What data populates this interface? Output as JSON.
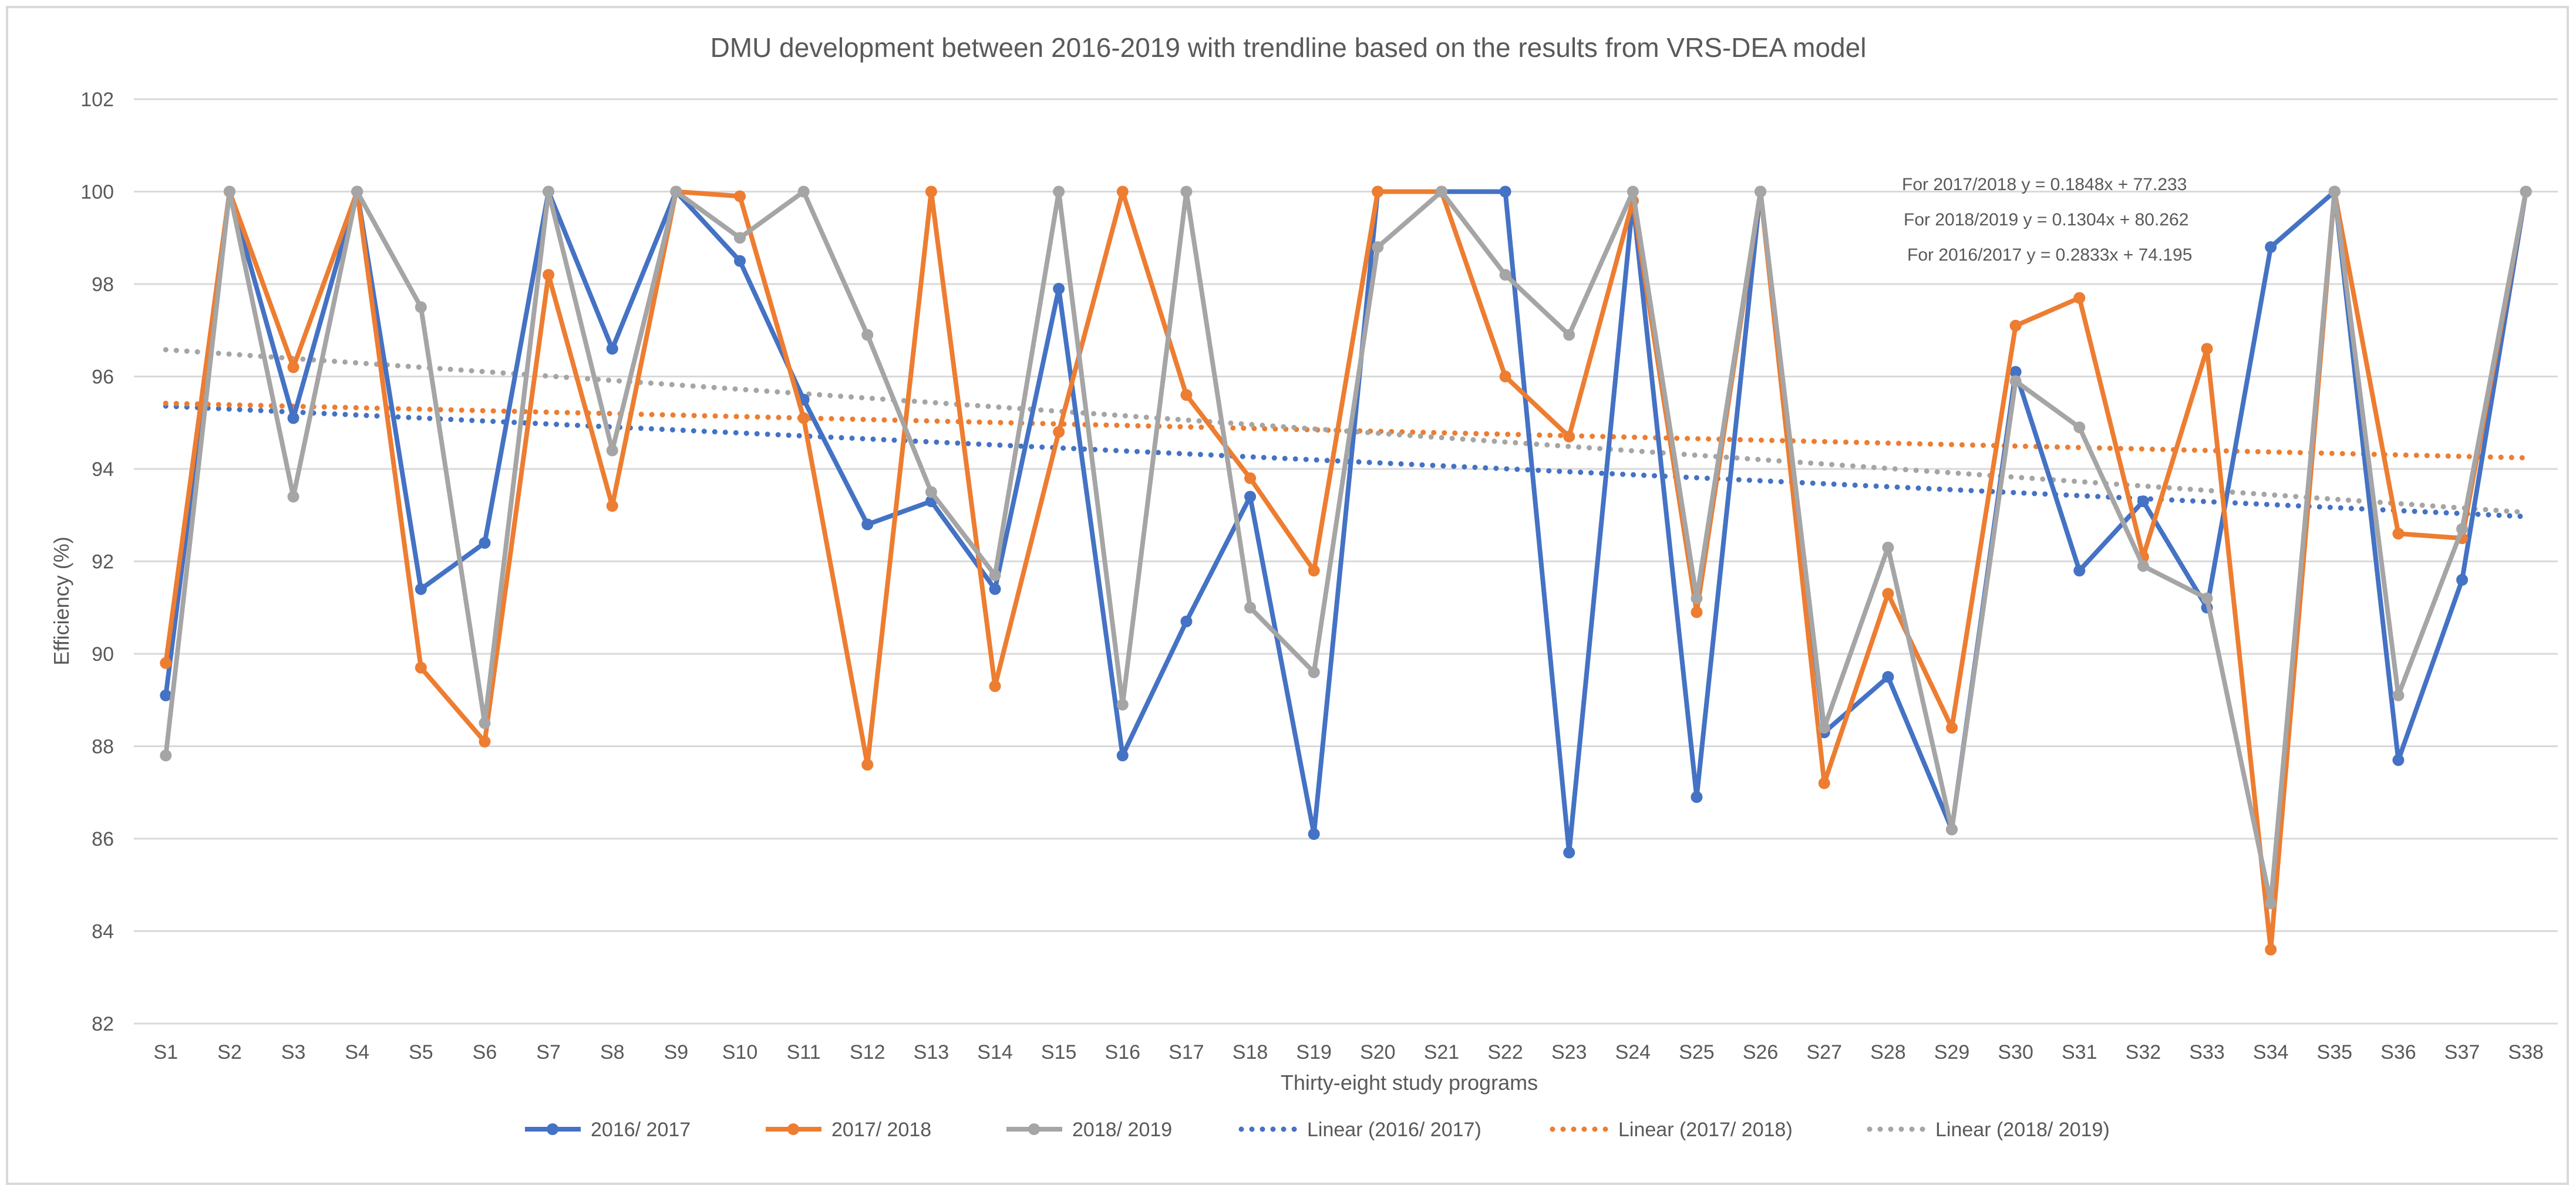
{
  "chart_data": {
    "type": "line",
    "title": "DMU development between 2016-2019 with trendline based on the results from VRS-DEA model",
    "xlabel": "Thirty-eight study programs",
    "ylabel": "Efficiency (%)",
    "ylim": [
      82,
      102
    ],
    "ytick_step": 2,
    "grid": true,
    "legend_position": "bottom",
    "categories": [
      "S1",
      "S2",
      "S3",
      "S4",
      "S5",
      "S6",
      "S7",
      "S8",
      "S9",
      "S10",
      "S11",
      "S12",
      "S13",
      "S14",
      "S15",
      "S16",
      "S17",
      "S18",
      "S19",
      "S20",
      "S21",
      "S22",
      "S23",
      "S24",
      "S25",
      "S26",
      "S27",
      "S28",
      "S29",
      "S30",
      "S31",
      "S32",
      "S33",
      "S34",
      "S35",
      "S36",
      "S37",
      "S38"
    ],
    "series": [
      {
        "name": "2016/ 2017",
        "color": "#4472c4",
        "values": [
          89.1,
          100,
          95.1,
          100,
          91.4,
          92.4,
          100,
          96.6,
          100,
          98.5,
          95.5,
          92.8,
          93.3,
          91.4,
          97.9,
          87.8,
          90.7,
          93.4,
          86.1,
          100,
          100,
          100,
          85.7,
          99.8,
          86.9,
          100,
          88.3,
          89.5,
          86.2,
          96.1,
          91.8,
          93.3,
          91.0,
          98.8,
          100,
          87.7,
          91.6,
          100
        ]
      },
      {
        "name": "2017/ 2018",
        "color": "#ed7d31",
        "values": [
          89.8,
          100,
          96.2,
          100,
          89.7,
          88.1,
          98.2,
          93.2,
          100,
          99.9,
          95.1,
          87.6,
          100,
          89.3,
          94.8,
          100,
          95.6,
          93.8,
          91.8,
          100,
          100,
          96.0,
          94.7,
          99.8,
          90.9,
          100,
          87.2,
          91.3,
          88.4,
          97.1,
          97.7,
          92.1,
          96.6,
          83.6,
          100,
          92.6,
          92.5,
          100
        ]
      },
      {
        "name": "2018/ 2019",
        "color": "#a5a5a5",
        "values": [
          87.8,
          100,
          93.4,
          100,
          97.5,
          88.5,
          100,
          94.4,
          100,
          99.0,
          100,
          96.9,
          93.5,
          91.7,
          100,
          88.9,
          100,
          91.0,
          89.6,
          98.8,
          100,
          98.2,
          96.9,
          100,
          91.2,
          100,
          88.4,
          92.3,
          86.2,
          95.9,
          94.9,
          91.9,
          91.2,
          84.6,
          100,
          89.1,
          92.7,
          100
        ]
      }
    ],
    "trendlines": [
      {
        "name": "Linear (2016/ 2017)",
        "color": "#4472c4",
        "start": 95.36,
        "end": 92.97
      },
      {
        "name": "Linear (2017/ 2018)",
        "color": "#ed7d31",
        "start": 95.42,
        "end": 94.24
      },
      {
        "name": "Linear (2018/ 2019)",
        "color": "#a5a5a5",
        "start": 96.58,
        "end": 93.06
      }
    ],
    "annotations": [
      "For 2017/2018 y = 0.1848x + 77.233",
      "For 2018/2019 y = 0.1304x + 80.262",
      "For 2016/2017 y = 0.2833x + 74.195"
    ]
  }
}
